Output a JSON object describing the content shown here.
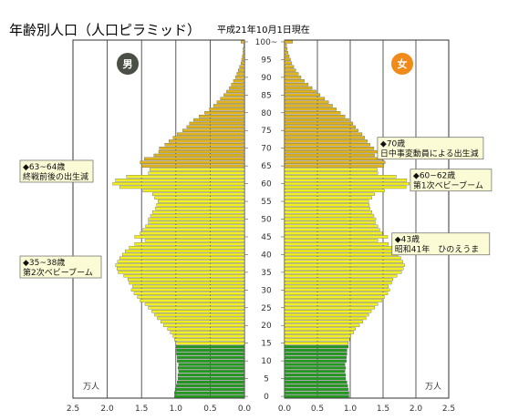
{
  "chart_data": {
    "type": "bar",
    "subtype": "population-pyramid",
    "title": "年齢別人口（人口ピラミッド）",
    "subtitle": "平成21年10月1日現在",
    "unit_label": "万人",
    "x_ticks": [
      "2.5",
      "2.0",
      "1.5",
      "1.0",
      "0.5",
      "0.0"
    ],
    "xlim": [
      0,
      2.5
    ],
    "y_ticks": [
      "0",
      "5",
      "10",
      "15",
      "20",
      "25",
      "30",
      "35",
      "40",
      "45",
      "50",
      "55",
      "60",
      "65",
      "70",
      "75",
      "80",
      "85",
      "90",
      "95",
      "100~"
    ],
    "ylim": [
      0,
      100
    ],
    "gender_labels": {
      "male": "男",
      "female": "女"
    },
    "colors": {
      "child": "#229a1e",
      "working": "#f2f01e",
      "elderly": "#e0b419",
      "male_badge": "#4a5045",
      "female_badge": "#f08a18",
      "annotation_bg": "#fbfbd6"
    },
    "age_groups": {
      "child_max": 14,
      "working_max": 64
    },
    "ages": [
      0,
      1,
      2,
      3,
      4,
      5,
      6,
      7,
      8,
      9,
      10,
      11,
      12,
      13,
      14,
      15,
      16,
      17,
      18,
      19,
      20,
      21,
      22,
      23,
      24,
      25,
      26,
      27,
      28,
      29,
      30,
      31,
      32,
      33,
      34,
      35,
      36,
      37,
      38,
      39,
      40,
      41,
      42,
      43,
      44,
      45,
      46,
      47,
      48,
      49,
      50,
      51,
      52,
      53,
      54,
      55,
      56,
      57,
      58,
      59,
      60,
      61,
      62,
      63,
      64,
      65,
      66,
      67,
      68,
      69,
      70,
      71,
      72,
      73,
      74,
      75,
      76,
      77,
      78,
      79,
      80,
      81,
      82,
      83,
      84,
      85,
      86,
      87,
      88,
      89,
      90,
      91,
      92,
      93,
      94,
      95,
      96,
      97,
      98,
      99,
      100
    ],
    "series": [
      {
        "name": "男",
        "values": [
          1.02,
          1.02,
          1.01,
          1.0,
          0.98,
          0.97,
          0.97,
          0.96,
          0.97,
          0.96,
          0.98,
          0.98,
          0.99,
          0.99,
          1.0,
          1.0,
          1.02,
          1.04,
          1.08,
          1.12,
          1.18,
          1.22,
          1.27,
          1.31,
          1.35,
          1.4,
          1.45,
          1.52,
          1.56,
          1.61,
          1.65,
          1.63,
          1.68,
          1.7,
          1.76,
          1.84,
          1.86,
          1.88,
          1.85,
          1.82,
          1.78,
          1.74,
          1.68,
          1.6,
          1.45,
          1.6,
          1.52,
          1.48,
          1.44,
          1.4,
          1.4,
          1.37,
          1.34,
          1.3,
          1.28,
          1.26,
          1.31,
          1.34,
          1.48,
          1.82,
          1.92,
          1.88,
          1.72,
          1.4,
          1.38,
          1.5,
          1.52,
          1.46,
          1.32,
          1.25,
          1.24,
          1.16,
          1.1,
          1.04,
          0.98,
          0.9,
          0.84,
          0.8,
          0.74,
          0.66,
          0.58,
          0.51,
          0.45,
          0.4,
          0.35,
          0.3,
          0.26,
          0.22,
          0.19,
          0.16,
          0.13,
          0.11,
          0.09,
          0.07,
          0.05,
          0.04,
          0.03,
          0.02,
          0.02,
          0.01,
          0.05
        ]
      },
      {
        "name": "女",
        "values": [
          0.98,
          0.98,
          0.97,
          0.96,
          0.95,
          0.93,
          0.93,
          0.92,
          0.93,
          0.92,
          0.94,
          0.94,
          0.95,
          0.95,
          0.97,
          0.97,
          0.99,
          1.01,
          1.05,
          1.08,
          1.14,
          1.19,
          1.24,
          1.28,
          1.32,
          1.37,
          1.42,
          1.48,
          1.52,
          1.57,
          1.6,
          1.58,
          1.63,
          1.65,
          1.71,
          1.78,
          1.81,
          1.83,
          1.8,
          1.77,
          1.73,
          1.69,
          1.63,
          1.58,
          1.42,
          1.57,
          1.49,
          1.45,
          1.42,
          1.38,
          1.39,
          1.36,
          1.33,
          1.3,
          1.29,
          1.28,
          1.33,
          1.37,
          1.52,
          1.85,
          1.9,
          1.86,
          1.7,
          1.42,
          1.41,
          1.51,
          1.53,
          1.49,
          1.37,
          1.42,
          1.36,
          1.3,
          1.26,
          1.22,
          1.18,
          1.12,
          1.08,
          1.04,
          0.98,
          0.92,
          0.85,
          0.79,
          0.73,
          0.67,
          0.61,
          0.54,
          0.48,
          0.42,
          0.36,
          0.3,
          0.25,
          0.21,
          0.17,
          0.14,
          0.11,
          0.09,
          0.07,
          0.05,
          0.04,
          0.03,
          0.12
        ]
      }
    ],
    "annotations": [
      {
        "side": "male",
        "age": 63.5,
        "lines": [
          "◆63~64歳",
          "終戦前後の出生減"
        ]
      },
      {
        "side": "male",
        "age": 36.5,
        "lines": [
          "◆35~38歳",
          "第2次ベビーブーム"
        ]
      },
      {
        "side": "female",
        "age": 70,
        "lines": [
          "◆70歳",
          "日中事変動員による出生減"
        ]
      },
      {
        "side": "female",
        "age": 61,
        "lines": [
          "◆60~62歳",
          "第1次ベビーブーム"
        ]
      },
      {
        "side": "female",
        "age": 43,
        "lines": [
          "◆43歳",
          "昭和41年　ひのえうま"
        ]
      }
    ]
  }
}
